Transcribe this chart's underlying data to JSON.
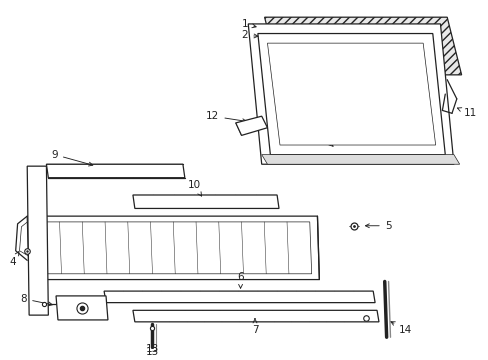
{
  "bg_color": "#ffffff",
  "line_color": "#222222",
  "lw_main": 0.9,
  "lw_thin": 0.5,
  "lw_stripe": 0.35,
  "label_fontsize": 7.5,
  "fig_width": 4.89,
  "fig_height": 3.6,
  "dpi": 100
}
